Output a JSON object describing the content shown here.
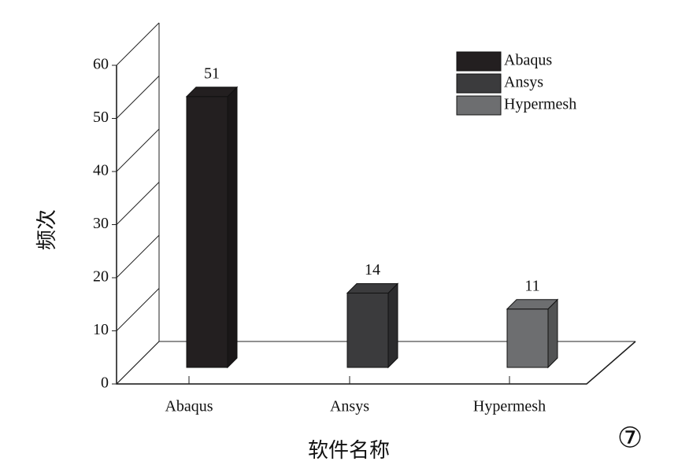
{
  "chart_data": {
    "type": "bar3d",
    "categories": [
      "Abaqus",
      "Ansys",
      "Hypermesh"
    ],
    "values": [
      51,
      14,
      11
    ],
    "colors": [
      "#231f20",
      "#3b3b3d",
      "#6d6e70"
    ],
    "x_label": "软件名称",
    "y_label": "频次",
    "ylim": [
      0,
      60
    ],
    "yticks": [
      0,
      10,
      20,
      30,
      40,
      50,
      60
    ],
    "grid": true,
    "legend": "upper right",
    "annotation": "⑦"
  }
}
